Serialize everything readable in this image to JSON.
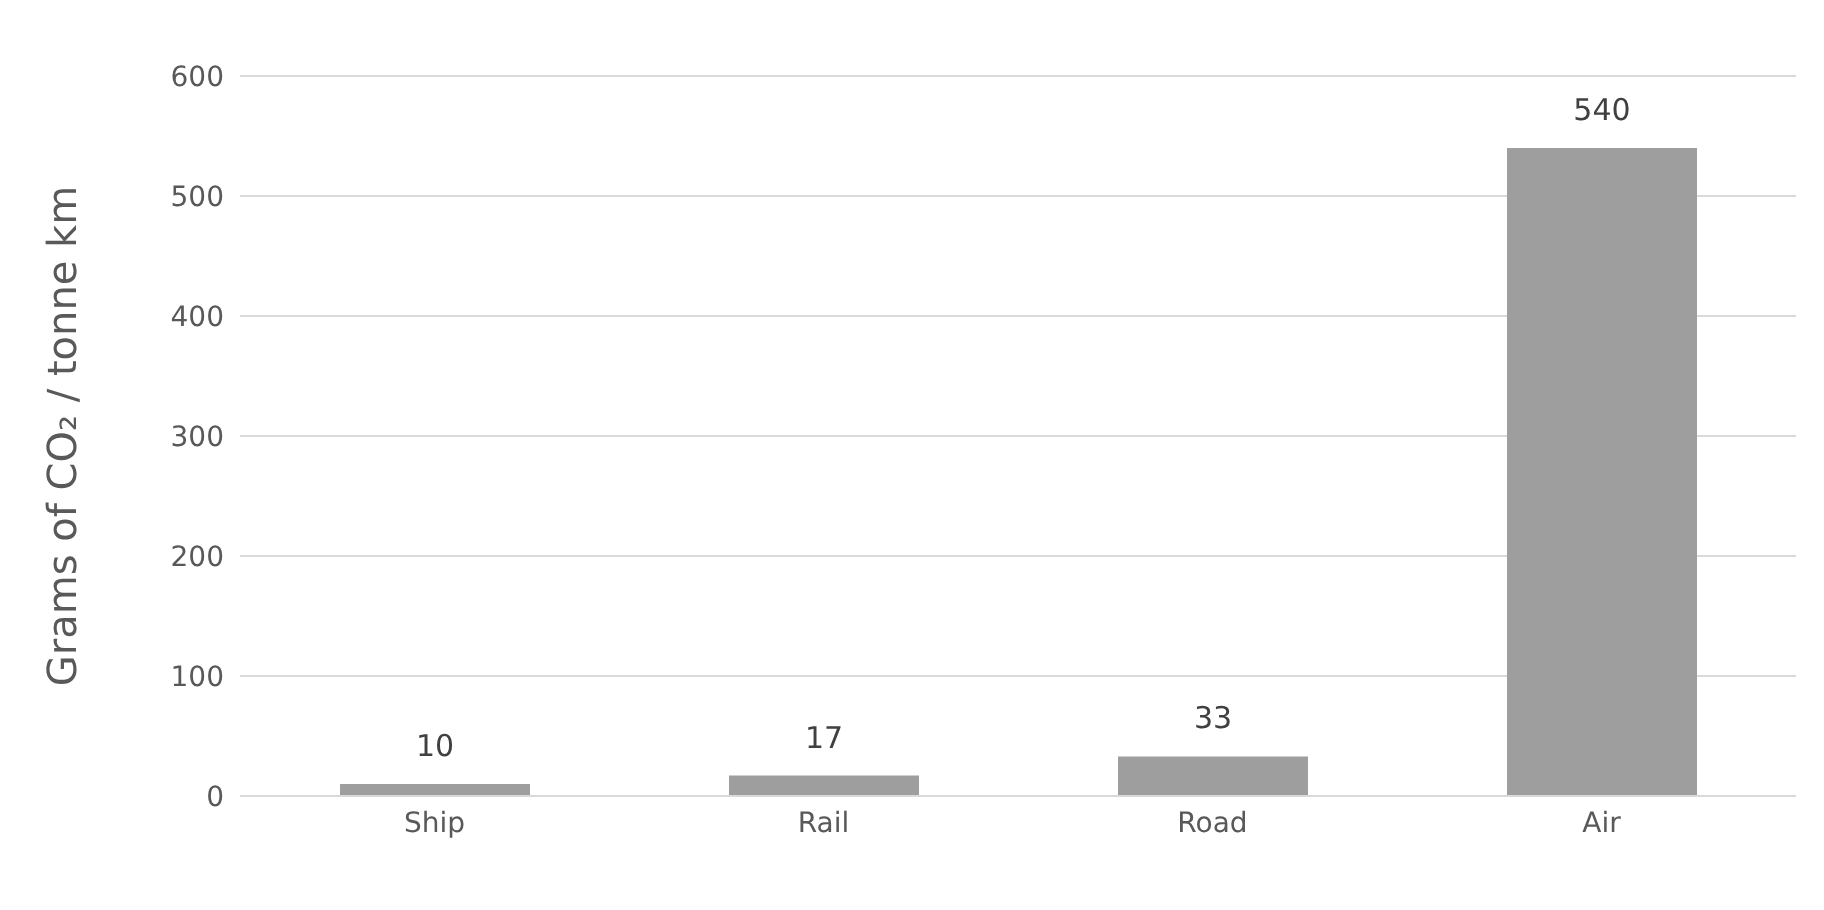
{
  "chart_data": {
    "type": "bar",
    "ylabel": "Grams of CO₂ / tonne km",
    "categories": [
      "Ship",
      "Rail",
      "Road",
      "Air"
    ],
    "values": [
      10,
      17,
      33,
      540
    ],
    "color": "#9e9e9e",
    "ylim": [
      0,
      600
    ],
    "yticks": [
      0,
      100,
      200,
      300,
      400,
      500,
      600
    ],
    "grid": "y",
    "data_labels": true,
    "legend": false
  }
}
